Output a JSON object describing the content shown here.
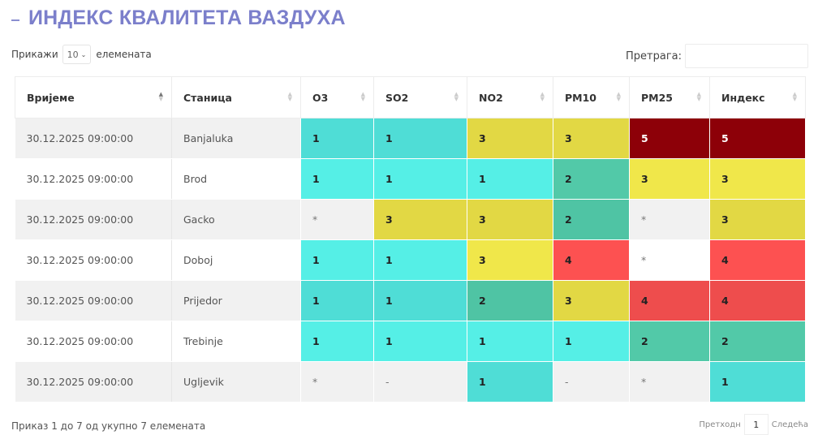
{
  "title": "ИНДЕКС КВАЛИТЕТА ВАЗДУХА",
  "length": {
    "prefix": "Прикажи",
    "value": "10",
    "suffix": "елемената"
  },
  "search": {
    "label": "Претрага:",
    "placeholder": ""
  },
  "columns": [
    "Вријеме",
    "Станица",
    "O3",
    "SO2",
    "NO2",
    "PM10",
    "PM25",
    "Индекс"
  ],
  "rows": [
    {
      "time": "30.12.2025 09:00:00",
      "station": "Banjaluka",
      "cells": [
        {
          "v": "1",
          "c": "#4fddd6",
          "t": "#222"
        },
        {
          "v": "1",
          "c": "#4fddd6",
          "t": "#222"
        },
        {
          "v": "3",
          "c": "#e2d844",
          "t": "#222"
        },
        {
          "v": "3",
          "c": "#e2d844",
          "t": "#222"
        },
        {
          "v": "5",
          "c": "#8d0008",
          "t": "#ffffff"
        },
        {
          "v": "5",
          "c": "#8d0008",
          "t": "#ffffff"
        }
      ]
    },
    {
      "time": "30.12.2025 09:00:00",
      "station": "Brod",
      "cells": [
        {
          "v": "1",
          "c": "#55efe6",
          "t": "#222"
        },
        {
          "v": "1",
          "c": "#55efe6",
          "t": "#222"
        },
        {
          "v": "1",
          "c": "#55efe6",
          "t": "#222"
        },
        {
          "v": "2",
          "c": "#52c9a8",
          "t": "#222"
        },
        {
          "v": "3",
          "c": "#f0e74a",
          "t": "#222"
        },
        {
          "v": "3",
          "c": "#f0e74a",
          "t": "#222"
        }
      ]
    },
    {
      "time": "30.12.2025 09:00:00",
      "station": "Gacko",
      "cells": [
        {
          "v": "*",
          "c": "#f1f1f1",
          "t": "#777"
        },
        {
          "v": "3",
          "c": "#e2d844",
          "t": "#222"
        },
        {
          "v": "3",
          "c": "#e2d844",
          "t": "#222"
        },
        {
          "v": "2",
          "c": "#4fc4a4",
          "t": "#222"
        },
        {
          "v": "*",
          "c": "#f1f1f1",
          "t": "#777"
        },
        {
          "v": "3",
          "c": "#e2d844",
          "t": "#222"
        }
      ]
    },
    {
      "time": "30.12.2025 09:00:00",
      "station": "Doboj",
      "cells": [
        {
          "v": "1",
          "c": "#55efe6",
          "t": "#222"
        },
        {
          "v": "1",
          "c": "#55efe6",
          "t": "#222"
        },
        {
          "v": "3",
          "c": "#f0e74a",
          "t": "#222"
        },
        {
          "v": "4",
          "c": "#fd5151",
          "t": "#222"
        },
        {
          "v": "*",
          "c": "#ffffff",
          "t": "#777"
        },
        {
          "v": "4",
          "c": "#fd5151",
          "t": "#222"
        }
      ]
    },
    {
      "time": "30.12.2025 09:00:00",
      "station": "Prijedor",
      "cells": [
        {
          "v": "1",
          "c": "#4fddd6",
          "t": "#222"
        },
        {
          "v": "1",
          "c": "#4fddd6",
          "t": "#222"
        },
        {
          "v": "2",
          "c": "#4fc4a4",
          "t": "#222"
        },
        {
          "v": "3",
          "c": "#e2d844",
          "t": "#222"
        },
        {
          "v": "4",
          "c": "#ee4d4d",
          "t": "#222"
        },
        {
          "v": "4",
          "c": "#ee4d4d",
          "t": "#222"
        }
      ]
    },
    {
      "time": "30.12.2025 09:00:00",
      "station": "Trebinje",
      "cells": [
        {
          "v": "1",
          "c": "#55efe6",
          "t": "#222"
        },
        {
          "v": "1",
          "c": "#55efe6",
          "t": "#222"
        },
        {
          "v": "1",
          "c": "#55efe6",
          "t": "#222"
        },
        {
          "v": "1",
          "c": "#55efe6",
          "t": "#222"
        },
        {
          "v": "2",
          "c": "#52c9a8",
          "t": "#222"
        },
        {
          "v": "2",
          "c": "#52c9a8",
          "t": "#222"
        }
      ]
    },
    {
      "time": "30.12.2025 09:00:00",
      "station": "Ugljevik",
      "cells": [
        {
          "v": "*",
          "c": "#f1f1f1",
          "t": "#777"
        },
        {
          "v": "-",
          "c": "#f1f1f1",
          "t": "#777"
        },
        {
          "v": "1",
          "c": "#4fddd6",
          "t": "#222"
        },
        {
          "v": "-",
          "c": "#f1f1f1",
          "t": "#777"
        },
        {
          "v": "*",
          "c": "#f1f1f1",
          "t": "#777"
        },
        {
          "v": "1",
          "c": "#4fddd6",
          "t": "#222"
        }
      ]
    }
  ],
  "info": "Приказ 1 до 7 од укупно 7 елемената",
  "pager": {
    "prev": "Претходн",
    "page": "1",
    "next": "Следећа"
  },
  "colors": {
    "title": "#7b7fcb",
    "good": "#55efe6",
    "fair": "#52c9a8",
    "moderate": "#f0e74a",
    "poor": "#fd5151",
    "very_poor": "#8d0008"
  }
}
